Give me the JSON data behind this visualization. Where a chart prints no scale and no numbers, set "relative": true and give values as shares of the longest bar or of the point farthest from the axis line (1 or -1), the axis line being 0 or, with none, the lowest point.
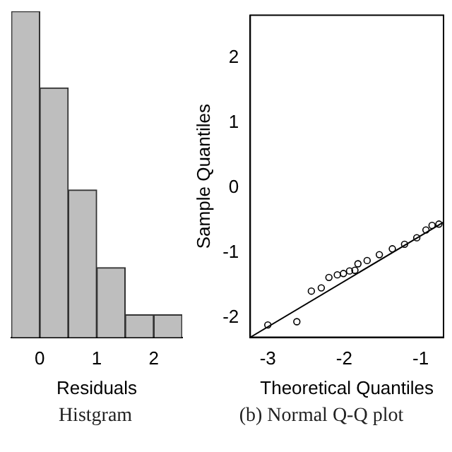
{
  "chart_data": [
    {
      "type": "bar",
      "relative": true,
      "xlabel": "Residuals",
      "annotations": [
        "Histgram"
      ],
      "x": [
        -0.25,
        0.25,
        0.75,
        1.25,
        1.75,
        2.25
      ],
      "values": [
        1,
        0.765,
        0.452,
        0.214,
        0.069,
        0.069
      ],
      "color": "#bebebe",
      "xlim": [
        -0.5,
        2.5
      ],
      "xticks": [
        0,
        1,
        2
      ],
      "grid": false,
      "legend": false
    },
    {
      "type": "scatter",
      "xlabel": "Theoretical Quantiles",
      "ylabel": "Sample Quantiles",
      "annotations": [
        "(b) Normal Q-Q plot"
      ],
      "xlim": [
        -3.23,
        -0.7
      ],
      "xticks": [
        -3,
        -2,
        -1
      ],
      "ylim": [
        -2.3,
        2.65
      ],
      "yticks": [
        -2,
        -1,
        0,
        1,
        2
      ],
      "grid": false,
      "legend": false,
      "marker": "circle",
      "series": [
        {
          "type": "scatter",
          "color": "#000000",
          "x": [
            -3.0,
            -2.62,
            -2.43,
            -2.3,
            -2.2,
            -2.09,
            -2.01,
            -1.93,
            -1.86,
            -1.82,
            -1.7,
            -1.54,
            -1.37,
            -1.21,
            -1.05,
            -0.93,
            -0.85,
            -0.76
          ],
          "values": [
            -2.11,
            -2.06,
            -1.59,
            -1.54,
            -1.38,
            -1.34,
            -1.32,
            -1.28,
            -1.27,
            -1.17,
            -1.12,
            -1.03,
            -0.94,
            -0.87,
            -0.77,
            -0.65,
            -0.58,
            -0.56
          ]
        },
        {
          "type": "line",
          "marker": "none",
          "color": "#000000",
          "x": [
            -3.23,
            -0.7
          ],
          "values": [
            -2.3,
            -0.53
          ]
        }
      ]
    }
  ]
}
